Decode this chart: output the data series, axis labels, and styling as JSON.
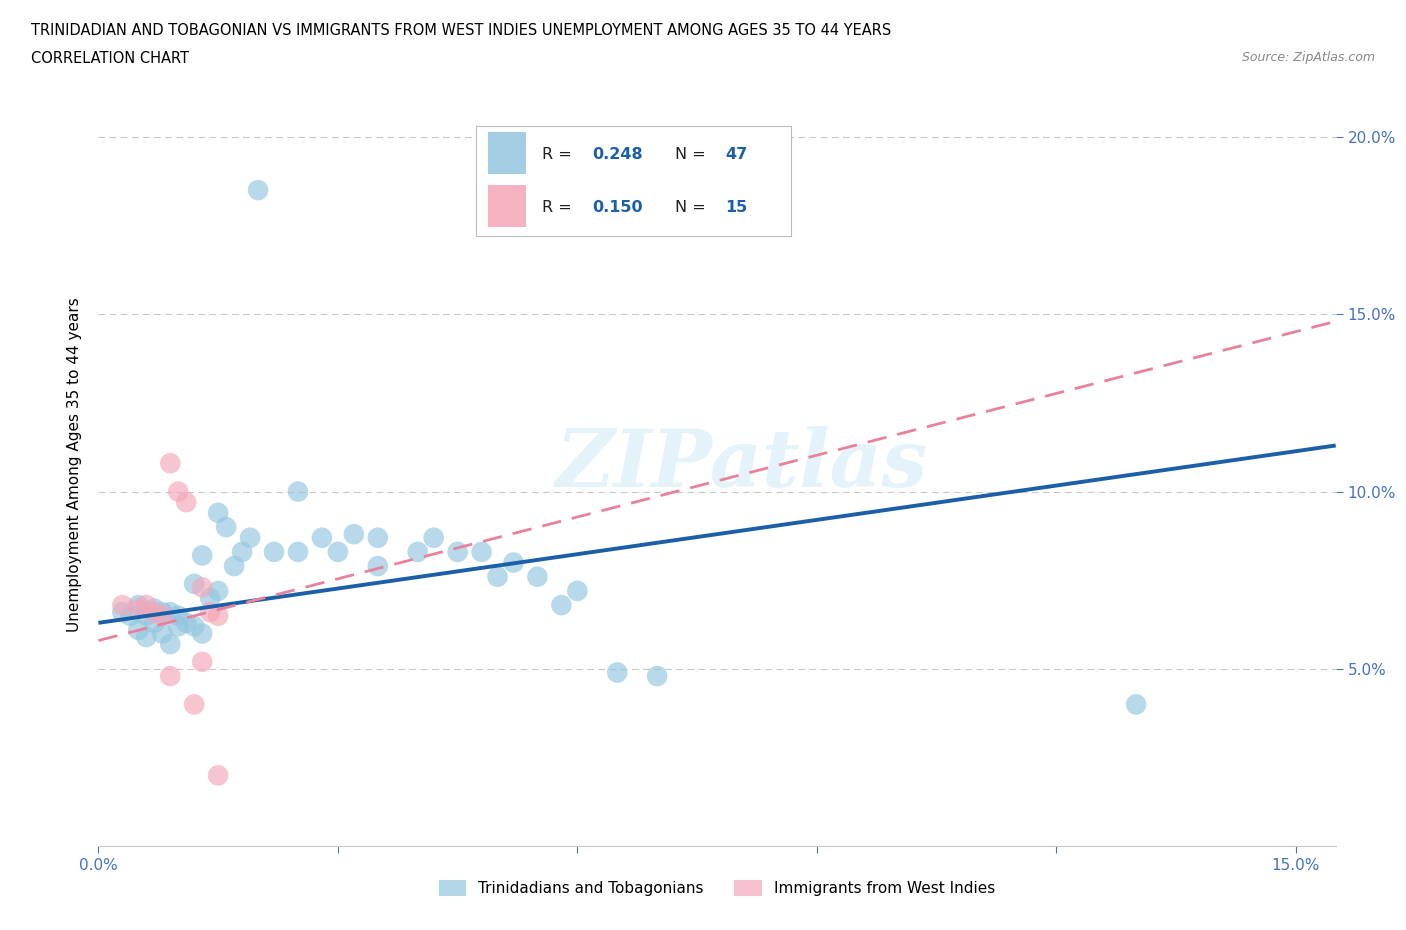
{
  "title_line1": "TRINIDADIAN AND TOBAGONIAN VS IMMIGRANTS FROM WEST INDIES UNEMPLOYMENT AMONG AGES 35 TO 44 YEARS",
  "title_line2": "CORRELATION CHART",
  "source_text": "Source: ZipAtlas.com",
  "ylabel": "Unemployment Among Ages 35 to 44 years",
  "xlim": [
    0.0,
    0.155
  ],
  "ylim": [
    0.0,
    0.215
  ],
  "watermark": "ZIPatlas",
  "blue_color": "#92c5de",
  "pink_color": "#f4a6b8",
  "blue_line_color": "#1a5fa8",
  "pink_line_color": "#e8829a",
  "axis_color": "#4472c4",
  "grid_color": "#c8c8c8",
  "bg_color": "#ffffff",
  "blue_scatter": [
    [
      0.005,
      0.068
    ],
    [
      0.006,
      0.065
    ],
    [
      0.007,
      0.067
    ],
    [
      0.008,
      0.066
    ],
    [
      0.009,
      0.066
    ],
    [
      0.01,
      0.065
    ],
    [
      0.011,
      0.063
    ],
    [
      0.012,
      0.062
    ],
    [
      0.003,
      0.066
    ],
    [
      0.004,
      0.065
    ],
    [
      0.007,
      0.063
    ],
    [
      0.01,
      0.062
    ],
    [
      0.013,
      0.06
    ],
    [
      0.008,
      0.06
    ],
    [
      0.005,
      0.061
    ],
    [
      0.006,
      0.059
    ],
    [
      0.009,
      0.057
    ],
    [
      0.012,
      0.074
    ],
    [
      0.015,
      0.072
    ],
    [
      0.014,
      0.07
    ],
    [
      0.013,
      0.082
    ],
    [
      0.015,
      0.094
    ],
    [
      0.016,
      0.09
    ],
    [
      0.019,
      0.087
    ],
    [
      0.018,
      0.083
    ],
    [
      0.017,
      0.079
    ],
    [
      0.022,
      0.083
    ],
    [
      0.025,
      0.1
    ],
    [
      0.028,
      0.087
    ],
    [
      0.025,
      0.083
    ],
    [
      0.03,
      0.083
    ],
    [
      0.032,
      0.088
    ],
    [
      0.035,
      0.087
    ],
    [
      0.035,
      0.079
    ],
    [
      0.04,
      0.083
    ],
    [
      0.042,
      0.087
    ],
    [
      0.045,
      0.083
    ],
    [
      0.048,
      0.083
    ],
    [
      0.05,
      0.076
    ],
    [
      0.052,
      0.08
    ],
    [
      0.055,
      0.076
    ],
    [
      0.058,
      0.068
    ],
    [
      0.06,
      0.072
    ],
    [
      0.065,
      0.049
    ],
    [
      0.07,
      0.048
    ],
    [
      0.13,
      0.04
    ],
    [
      0.02,
      0.185
    ]
  ],
  "pink_scatter": [
    [
      0.003,
      0.068
    ],
    [
      0.005,
      0.067
    ],
    [
      0.006,
      0.068
    ],
    [
      0.007,
      0.066
    ],
    [
      0.008,
      0.065
    ],
    [
      0.009,
      0.108
    ],
    [
      0.01,
      0.1
    ],
    [
      0.011,
      0.097
    ],
    [
      0.013,
      0.073
    ],
    [
      0.014,
      0.066
    ],
    [
      0.015,
      0.065
    ],
    [
      0.009,
      0.048
    ],
    [
      0.012,
      0.04
    ],
    [
      0.013,
      0.052
    ],
    [
      0.015,
      0.02
    ]
  ],
  "blue_regline_x": [
    0.0,
    0.155
  ],
  "blue_regline_y": [
    0.063,
    0.113
  ],
  "pink_regline_x": [
    0.0,
    0.155
  ],
  "pink_regline_y": [
    0.058,
    0.148
  ]
}
